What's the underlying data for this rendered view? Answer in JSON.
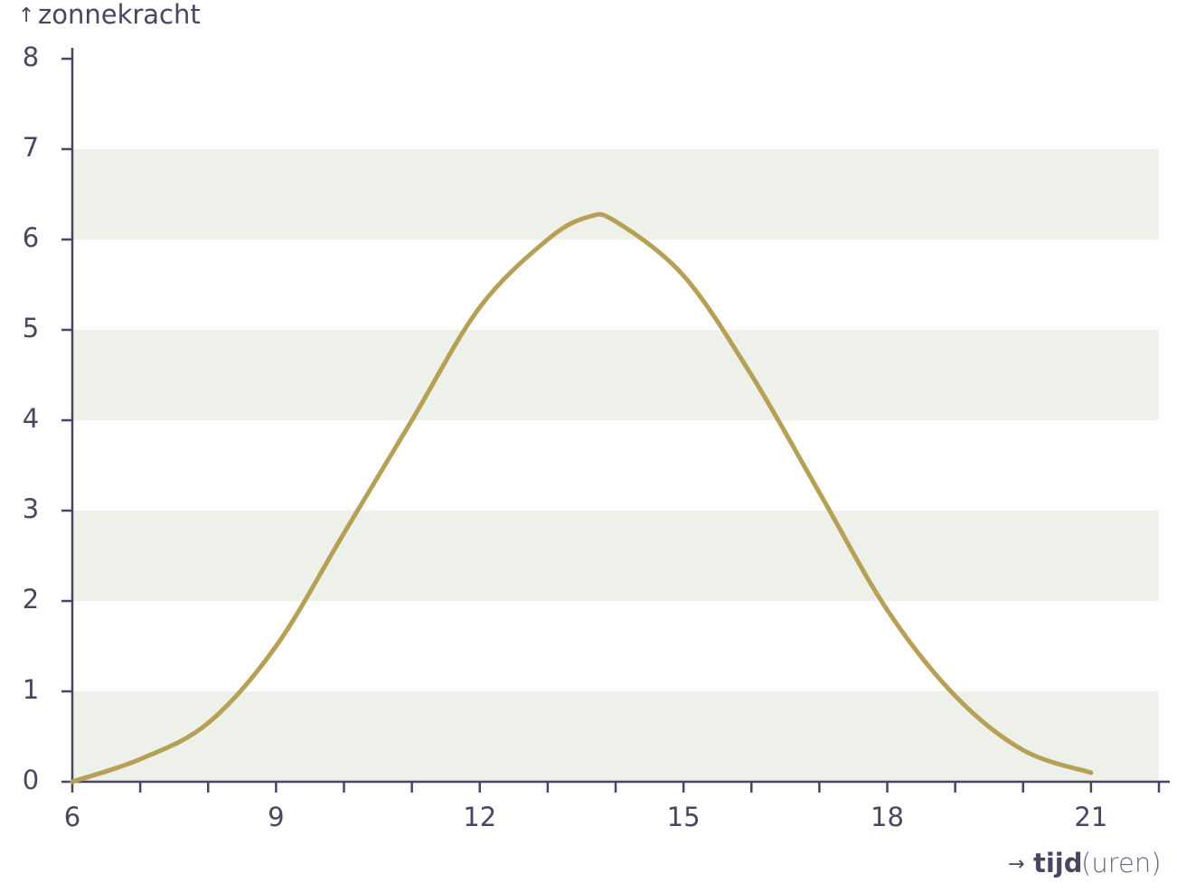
{
  "chart_data": {
    "type": "line",
    "y_label": "zonnekracht",
    "x_label": "tijd",
    "x_unit": "(uren)",
    "x": [
      6,
      7,
      8,
      9,
      10,
      11,
      12,
      13,
      13.6,
      14,
      15,
      16,
      17,
      18,
      19,
      20,
      21
    ],
    "series": [
      {
        "name": "zonnekracht",
        "color": "#b5a055",
        "values": [
          0,
          0.25,
          0.65,
          1.5,
          2.75,
          4.0,
          5.25,
          6.0,
          6.25,
          6.2,
          5.6,
          4.5,
          3.2,
          1.9,
          0.95,
          0.35,
          0.1
        ]
      }
    ],
    "xlim": [
      6,
      22
    ],
    "xticks": [
      6,
      9,
      12,
      15,
      18,
      21
    ],
    "xticks_minor": [
      7,
      8,
      10,
      11,
      13,
      14,
      16,
      17,
      19,
      20,
      22
    ],
    "ylim": [
      0,
      8
    ],
    "yticks": [
      0,
      1,
      2,
      3,
      4,
      5,
      6,
      7,
      8
    ],
    "grid": "bands",
    "band_color": "#eef1ea"
  }
}
